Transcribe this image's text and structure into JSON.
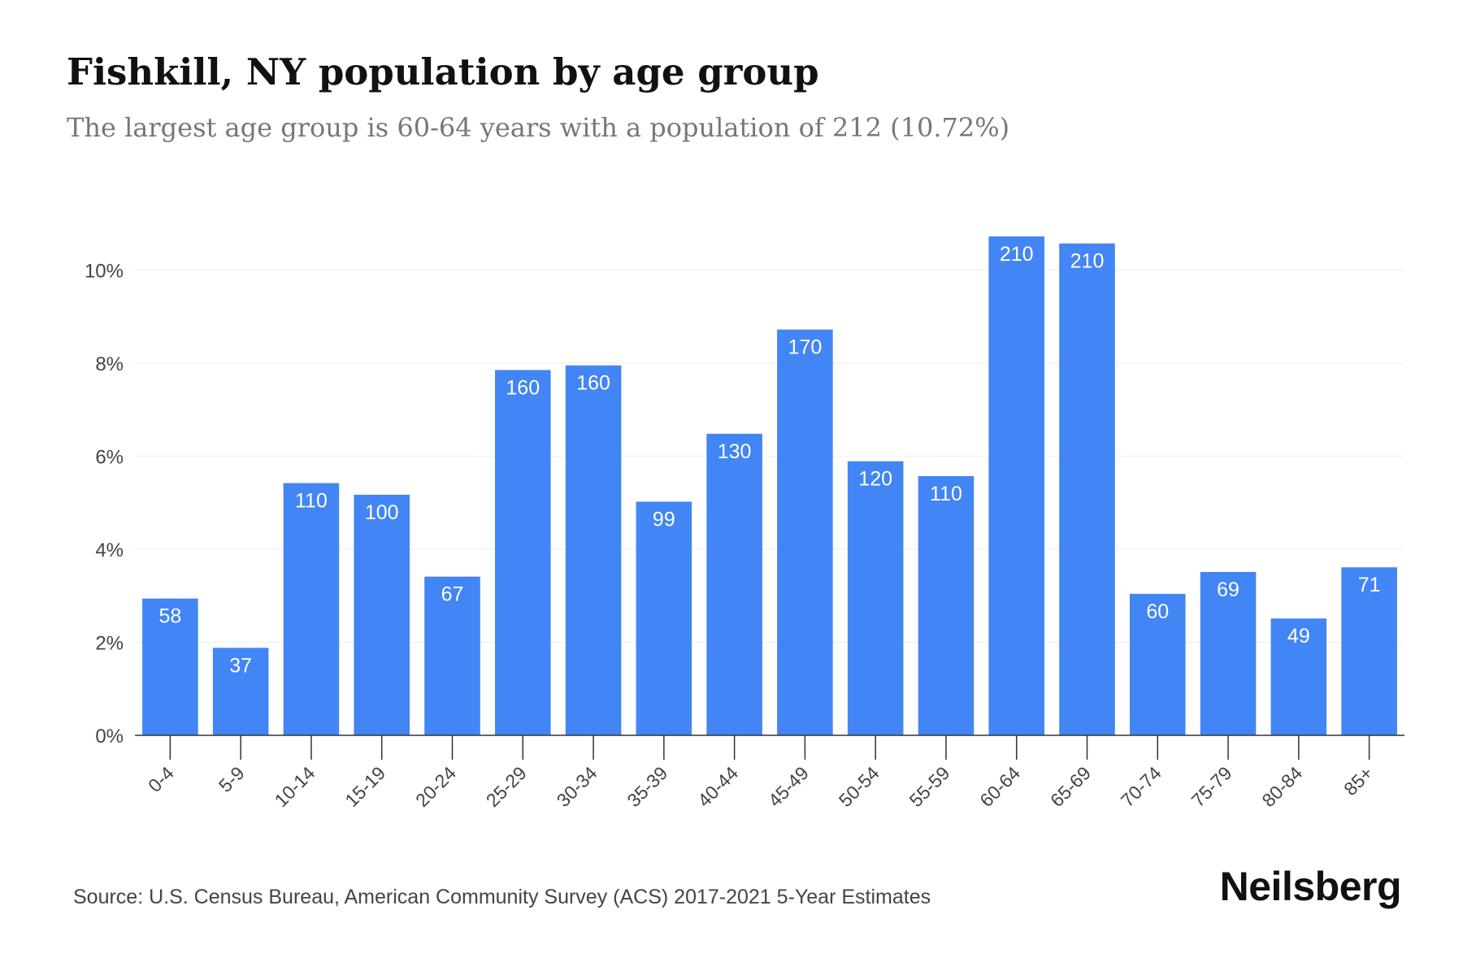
{
  "title": "Fishkill, NY population by age group",
  "subtitle": "The largest age group is 60-64 years with a population of 212 (10.72%)",
  "source": "Source: U.S. Census Bureau, American Community Survey (ACS) 2017-2021 5-Year Estimates",
  "brand": "Neilsberg",
  "colors": {
    "bar": "#4285f4",
    "bar_label": "#ffffff",
    "grid": "#eeeeee",
    "axis": "#333333",
    "tick_text": "#444444"
  },
  "chart_data": {
    "type": "bar",
    "categories": [
      "0-4",
      "5-9",
      "10-14",
      "15-19",
      "20-24",
      "25-29",
      "30-34",
      "35-39",
      "40-44",
      "45-49",
      "50-54",
      "55-59",
      "60-64",
      "65-69",
      "70-74",
      "75-79",
      "80-84",
      "85+"
    ],
    "values": [
      2.94,
      1.88,
      5.42,
      5.17,
      3.41,
      7.85,
      7.95,
      5.02,
      6.48,
      8.72,
      5.89,
      5.57,
      10.72,
      10.57,
      3.04,
      3.51,
      2.51,
      3.61
    ],
    "data_labels": [
      "58",
      "37",
      "110",
      "100",
      "67",
      "160",
      "160",
      "99",
      "130",
      "170",
      "120",
      "110",
      "210",
      "210",
      "60",
      "69",
      "49",
      "71"
    ],
    "yticks": [
      0,
      2,
      4,
      6,
      8,
      10
    ],
    "ytick_labels": [
      "0%",
      "2%",
      "4%",
      "6%",
      "8%",
      "10%"
    ],
    "ylim": [
      0,
      11
    ],
    "xlabel": "",
    "ylabel": "",
    "grid": true,
    "legend": "none"
  }
}
